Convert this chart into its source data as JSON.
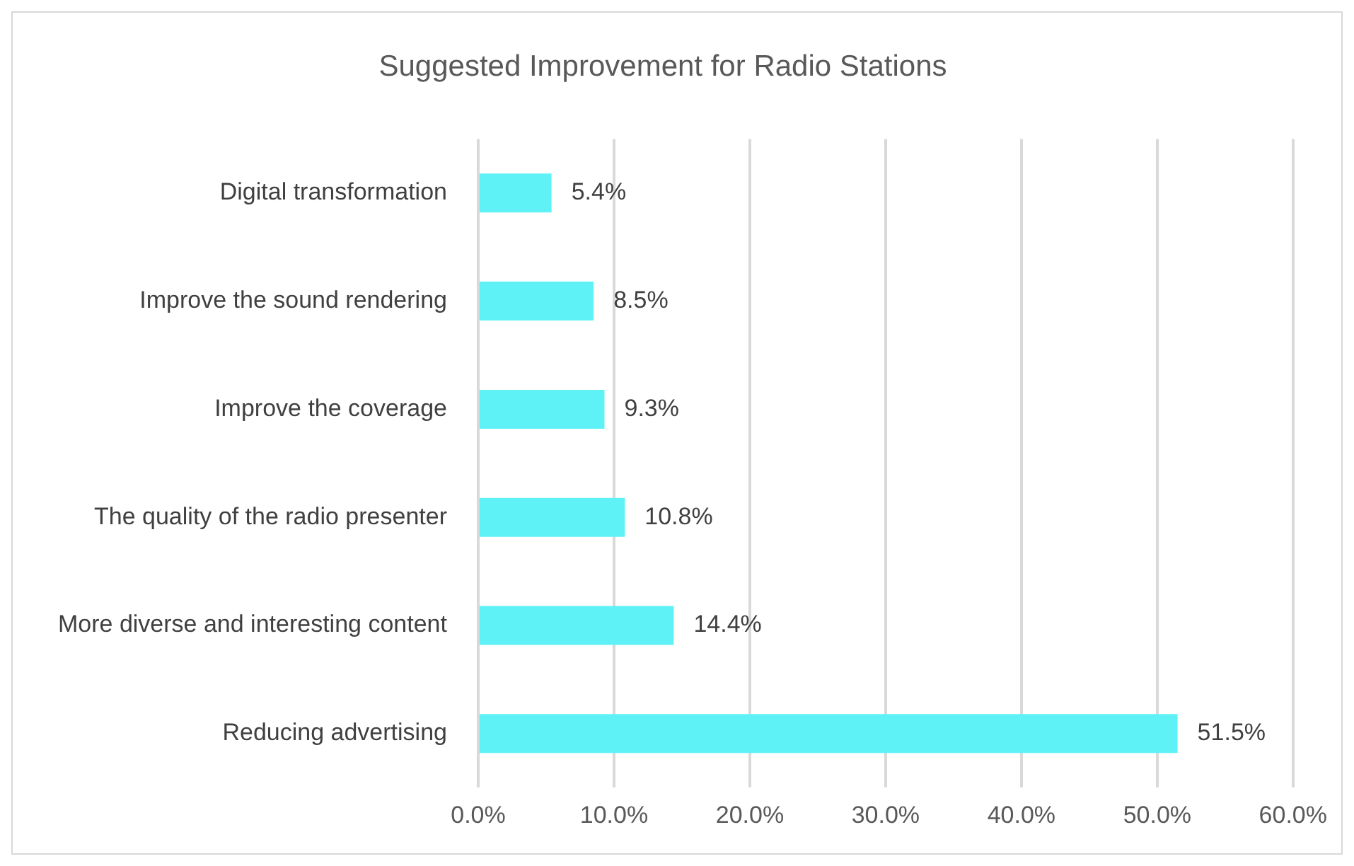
{
  "chart_data": {
    "type": "bar",
    "orientation": "horizontal",
    "title": "Suggested Improvement for Radio Stations",
    "categories": [
      "Digital transformation",
      "Improve the sound rendering",
      "Improve the coverage",
      "The quality of the radio presenter",
      "More diverse and interesting content",
      "Reducing advertising"
    ],
    "values": [
      5.4,
      8.5,
      9.3,
      10.8,
      14.4,
      51.5
    ],
    "value_labels": [
      "5.4%",
      "8.5%",
      "9.3%",
      "10.8%",
      "14.4%",
      "51.5%"
    ],
    "color": "#5ef2f7",
    "xlim": [
      0,
      60
    ],
    "xticks": [
      {
        "value": 0,
        "label": "0.0%"
      },
      {
        "value": 10,
        "label": "10.0%"
      },
      {
        "value": 20,
        "label": "20.0%"
      },
      {
        "value": 30,
        "label": "30.0%"
      },
      {
        "value": 40,
        "label": "40.0%"
      },
      {
        "value": 50,
        "label": "50.0%"
      },
      {
        "value": 60,
        "label": "60.0%"
      }
    ],
    "grid": "x",
    "legend": false
  }
}
